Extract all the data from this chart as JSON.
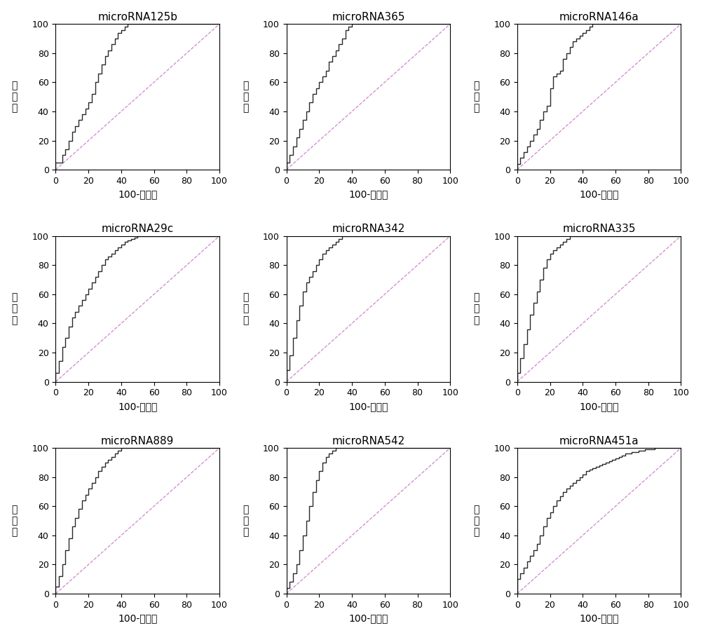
{
  "titles": [
    "microRNA125b",
    "microRNA365",
    "microRNA146a",
    "microRNA29c",
    "microRNA342",
    "microRNA335",
    "microRNA889",
    "microRNA542",
    "microRNA451a"
  ],
  "xlabel": "100-特异性",
  "ylabel_chars": [
    "灵",
    "敏",
    "度"
  ],
  "curve_color": "#2a2a2a",
  "diagonal_color": "#cc88cc",
  "bg_color": "#ffffff",
  "xlim": [
    0,
    100
  ],
  "ylim": [
    0,
    100
  ],
  "xticks": [
    0,
    20,
    40,
    60,
    80,
    100
  ],
  "yticks": [
    0,
    20,
    40,
    60,
    80,
    100
  ],
  "curves": {
    "microRNA125b": {
      "x": [
        0,
        0,
        4,
        4,
        6,
        6,
        8,
        8,
        10,
        10,
        12,
        12,
        14,
        14,
        16,
        16,
        18,
        18,
        20,
        20,
        22,
        22,
        24,
        24,
        26,
        26,
        28,
        28,
        30,
        30,
        32,
        32,
        34,
        34,
        36,
        36,
        38,
        38,
        40,
        40,
        42,
        42,
        44,
        44,
        46,
        46,
        48,
        60,
        100
      ],
      "y": [
        0,
        5,
        5,
        10,
        10,
        14,
        14,
        20,
        20,
        26,
        26,
        30,
        30,
        34,
        34,
        38,
        38,
        42,
        42,
        46,
        46,
        52,
        52,
        60,
        60,
        66,
        66,
        72,
        72,
        78,
        78,
        82,
        82,
        86,
        86,
        90,
        90,
        94,
        94,
        96,
        96,
        98,
        98,
        100,
        100,
        100,
        100,
        100,
        100
      ]
    },
    "microRNA365": {
      "x": [
        0,
        0,
        2,
        2,
        4,
        4,
        6,
        6,
        8,
        8,
        10,
        10,
        12,
        12,
        14,
        14,
        16,
        16,
        18,
        18,
        20,
        20,
        22,
        22,
        24,
        24,
        26,
        26,
        28,
        28,
        30,
        30,
        32,
        32,
        34,
        34,
        36,
        36,
        38,
        38,
        40,
        40,
        42,
        42,
        44,
        44,
        46,
        46,
        48,
        48,
        50,
        50,
        54,
        100
      ],
      "y": [
        0,
        5,
        5,
        10,
        10,
        16,
        16,
        22,
        22,
        28,
        28,
        34,
        34,
        40,
        40,
        46,
        46,
        52,
        52,
        56,
        56,
        60,
        60,
        64,
        64,
        68,
        68,
        74,
        74,
        78,
        78,
        82,
        82,
        86,
        86,
        90,
        90,
        96,
        96,
        98,
        98,
        100,
        100,
        100,
        100,
        100,
        100,
        100,
        100,
        100,
        100,
        100,
        100,
        100
      ]
    },
    "microRNA146a": {
      "x": [
        0,
        0,
        2,
        2,
        4,
        4,
        6,
        6,
        8,
        8,
        10,
        10,
        12,
        12,
        14,
        14,
        16,
        16,
        18,
        18,
        20,
        20,
        22,
        22,
        24,
        24,
        26,
        26,
        28,
        28,
        30,
        30,
        32,
        32,
        34,
        34,
        36,
        36,
        38,
        38,
        40,
        40,
        42,
        42,
        44,
        44,
        46,
        46,
        48,
        48,
        50,
        50,
        84,
        84,
        86,
        100
      ],
      "y": [
        0,
        4,
        4,
        8,
        8,
        12,
        12,
        16,
        16,
        20,
        20,
        24,
        24,
        28,
        28,
        34,
        34,
        40,
        40,
        44,
        44,
        56,
        56,
        64,
        64,
        66,
        66,
        68,
        68,
        76,
        76,
        80,
        80,
        84,
        84,
        88,
        88,
        90,
        90,
        92,
        92,
        94,
        94,
        96,
        96,
        98,
        98,
        100,
        100,
        100,
        100,
        100,
        100,
        100,
        100,
        100
      ]
    },
    "microRNA29c": {
      "x": [
        0,
        0,
        2,
        2,
        4,
        4,
        6,
        6,
        8,
        8,
        10,
        10,
        12,
        12,
        14,
        14,
        16,
        16,
        18,
        18,
        20,
        20,
        22,
        22,
        24,
        24,
        26,
        26,
        28,
        28,
        30,
        30,
        32,
        32,
        34,
        34,
        36,
        36,
        38,
        38,
        40,
        40,
        42,
        42,
        44,
        44,
        46,
        46,
        48,
        48,
        50,
        50,
        52,
        52,
        54,
        54,
        56,
        56,
        58,
        58,
        60,
        60,
        62,
        100
      ],
      "y": [
        0,
        6,
        6,
        14,
        14,
        24,
        24,
        30,
        30,
        38,
        38,
        44,
        44,
        48,
        48,
        52,
        52,
        56,
        56,
        60,
        60,
        64,
        64,
        68,
        68,
        72,
        72,
        76,
        76,
        80,
        80,
        84,
        84,
        86,
        86,
        88,
        88,
        90,
        90,
        92,
        92,
        94,
        94,
        96,
        96,
        97,
        97,
        98,
        98,
        99,
        99,
        100,
        100,
        100,
        100,
        100,
        100,
        100,
        100,
        100,
        100,
        100,
        100,
        100
      ]
    },
    "microRNA342": {
      "x": [
        0,
        0,
        2,
        2,
        4,
        4,
        6,
        6,
        8,
        8,
        10,
        10,
        12,
        12,
        14,
        14,
        16,
        16,
        18,
        18,
        20,
        20,
        22,
        22,
        24,
        24,
        26,
        26,
        28,
        28,
        30,
        30,
        32,
        32,
        34,
        34,
        36,
        36,
        38,
        38,
        40,
        40,
        100
      ],
      "y": [
        0,
        8,
        8,
        18,
        18,
        30,
        30,
        42,
        42,
        52,
        52,
        62,
        62,
        68,
        68,
        72,
        72,
        76,
        76,
        80,
        80,
        84,
        84,
        88,
        88,
        90,
        90,
        92,
        92,
        94,
        94,
        96,
        96,
        98,
        98,
        100,
        100,
        100,
        100,
        100,
        100,
        100,
        100
      ]
    },
    "microRNA335": {
      "x": [
        0,
        0,
        2,
        2,
        4,
        4,
        6,
        6,
        8,
        8,
        10,
        10,
        12,
        12,
        14,
        14,
        16,
        16,
        18,
        18,
        20,
        20,
        22,
        22,
        24,
        24,
        26,
        26,
        28,
        28,
        30,
        30,
        32,
        32,
        34,
        34,
        36,
        36,
        38,
        38,
        100
      ],
      "y": [
        0,
        6,
        6,
        16,
        16,
        26,
        26,
        36,
        36,
        46,
        46,
        54,
        54,
        62,
        62,
        70,
        70,
        78,
        78,
        84,
        84,
        88,
        88,
        90,
        90,
        92,
        92,
        94,
        94,
        96,
        96,
        98,
        98,
        100,
        100,
        100,
        100,
        100,
        100,
        100,
        100
      ]
    },
    "microRNA889": {
      "x": [
        0,
        0,
        2,
        2,
        4,
        4,
        6,
        6,
        8,
        8,
        10,
        10,
        12,
        12,
        14,
        14,
        16,
        16,
        18,
        18,
        20,
        20,
        22,
        22,
        24,
        24,
        26,
        26,
        28,
        28,
        30,
        30,
        32,
        32,
        34,
        34,
        36,
        36,
        38,
        38,
        40,
        40,
        42,
        42,
        44,
        44,
        46,
        46,
        48,
        48,
        50,
        50,
        52,
        52,
        54,
        54,
        56,
        56,
        58,
        58,
        60,
        60,
        62,
        100
      ],
      "y": [
        0,
        5,
        5,
        12,
        12,
        20,
        20,
        30,
        30,
        38,
        38,
        46,
        46,
        52,
        52,
        58,
        58,
        64,
        64,
        68,
        68,
        72,
        72,
        76,
        76,
        80,
        80,
        84,
        84,
        87,
        87,
        90,
        90,
        92,
        92,
        94,
        94,
        96,
        96,
        98,
        98,
        100,
        100,
        100,
        100,
        100,
        100,
        100,
        100,
        100,
        100,
        100,
        100,
        100,
        100,
        100,
        100,
        100,
        100,
        100,
        100,
        100,
        100,
        100
      ]
    },
    "microRNA542": {
      "x": [
        0,
        0,
        2,
        2,
        4,
        4,
        6,
        6,
        8,
        8,
        10,
        10,
        12,
        12,
        14,
        14,
        16,
        16,
        18,
        18,
        20,
        20,
        22,
        22,
        24,
        24,
        26,
        26,
        28,
        28,
        30,
        30,
        56,
        100
      ],
      "y": [
        0,
        4,
        4,
        8,
        8,
        14,
        14,
        20,
        20,
        30,
        30,
        40,
        40,
        50,
        50,
        60,
        60,
        70,
        70,
        78,
        78,
        84,
        84,
        90,
        90,
        94,
        94,
        96,
        96,
        98,
        98,
        100,
        100,
        100
      ]
    },
    "microRNA451a": {
      "x": [
        0,
        0,
        2,
        4,
        6,
        8,
        10,
        12,
        14,
        16,
        18,
        20,
        22,
        24,
        26,
        28,
        30,
        32,
        34,
        36,
        38,
        40,
        42,
        44,
        46,
        48,
        50,
        52,
        54,
        56,
        58,
        60,
        62,
        64,
        66,
        68,
        70,
        72,
        74,
        76,
        78,
        80,
        82,
        84,
        86,
        88,
        90,
        92,
        94,
        96,
        98,
        100
      ],
      "y": [
        0,
        10,
        14,
        18,
        22,
        26,
        30,
        34,
        40,
        46,
        52,
        56,
        60,
        64,
        67,
        70,
        72,
        74,
        76,
        78,
        80,
        82,
        84,
        85,
        86,
        87,
        88,
        89,
        90,
        91,
        92,
        93,
        94,
        95,
        96,
        96,
        97,
        97,
        98,
        98,
        99,
        99,
        99,
        100,
        100,
        100,
        100,
        100,
        100,
        100,
        100,
        100
      ]
    }
  },
  "grid_rows": 3,
  "grid_cols": 3,
  "title_fontsize": 11,
  "label_fontsize": 10,
  "tick_fontsize": 9
}
